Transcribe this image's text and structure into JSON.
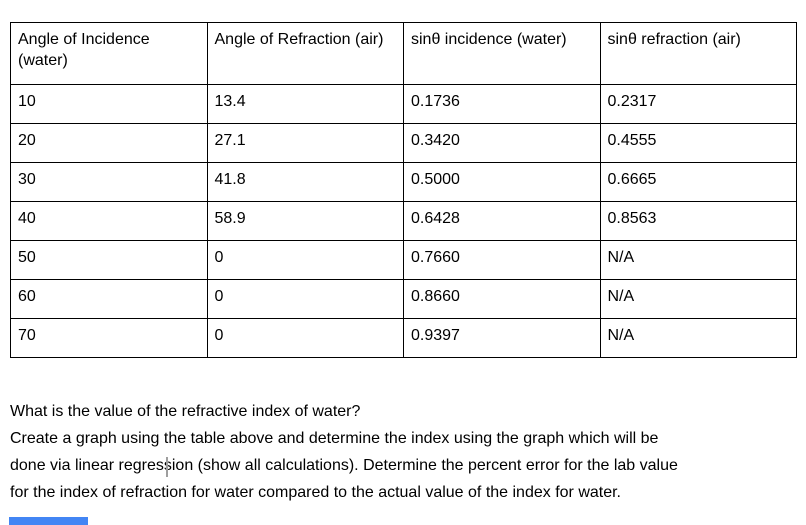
{
  "table": {
    "headers": [
      "Angle of Incidence (water)",
      "Angle of Refraction (air)",
      "sinθ incidence (water)",
      "sinθ refraction (air)"
    ],
    "rows": [
      [
        "10",
        "13.4",
        "0.1736",
        "0.2317"
      ],
      [
        "20",
        "27.1",
        "0.3420",
        "0.4555"
      ],
      [
        "30",
        "41.8",
        "0.5000",
        "0.6665"
      ],
      [
        "40",
        "58.9",
        "0.6428",
        "0.8563"
      ],
      [
        "50",
        "0",
        "0.7660",
        "N/A"
      ],
      [
        "60",
        "0",
        "0.8660",
        "N/A"
      ],
      [
        "70",
        "0",
        "0.9397",
        "N/A"
      ]
    ]
  },
  "question": {
    "lines": [
      "What is the value of the refractive index of water?",
      "Create a graph using the table above and determine the index using the graph which will be",
      "done via linear regression (show all calculations). Determine the percent error for the lab value",
      "for the index of refraction for water compared to the actual value of the index for water."
    ]
  },
  "colors": {
    "accent_bar": "#4285f4",
    "table_border": "#000000",
    "text": "#000000",
    "caret": "#9e9e9e"
  }
}
